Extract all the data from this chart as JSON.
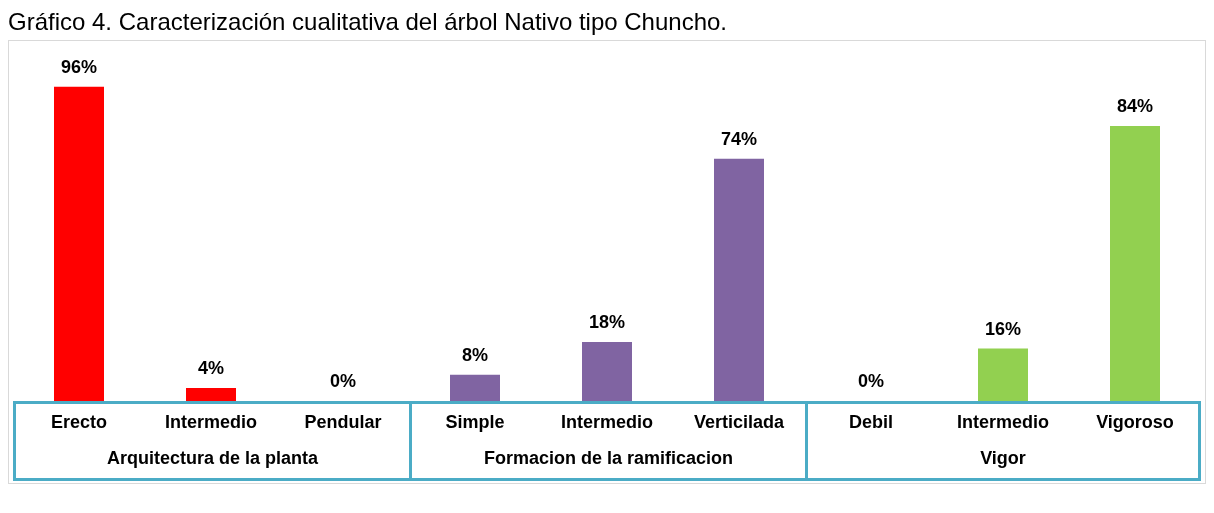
{
  "chart_data": {
    "type": "bar",
    "title": "Gráfico 4. Caracterización cualitativa del árbol Nativo tipo Chuncho.",
    "categories": [
      "Erecto",
      "Intermedio",
      "Pendular",
      "Simple",
      "Intermedio",
      "Verticilada",
      "Debil",
      "Intermedio",
      "Vigoroso"
    ],
    "values": [
      96,
      4,
      0,
      8,
      18,
      74,
      0,
      16,
      84
    ],
    "value_labels": [
      "96%",
      "4%",
      "0%",
      "8%",
      "18%",
      "74%",
      "0%",
      "16%",
      "84%"
    ],
    "colors": [
      "#ff0000",
      "#ff0000",
      "#ff0000",
      "#8064a2",
      "#8064a2",
      "#8064a2",
      "#92d050",
      "#92d050",
      "#92d050"
    ],
    "annotations": [
      "Arquitectura de la planta",
      "Formacion de la ramificacion",
      "Vigor"
    ],
    "grid": false,
    "legend": false
  }
}
